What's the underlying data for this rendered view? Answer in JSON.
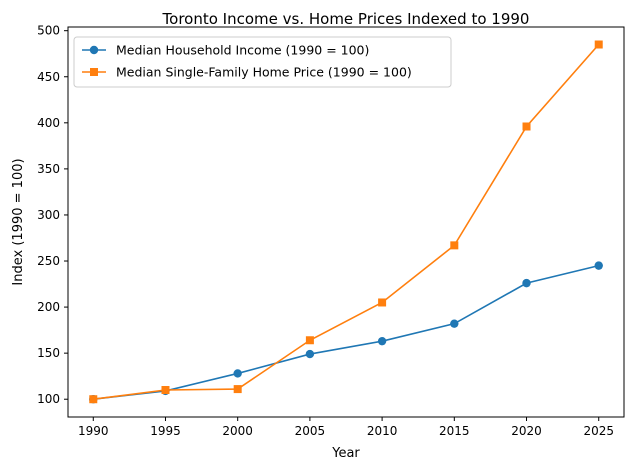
{
  "chart_data": {
    "type": "line",
    "title": "Toronto Income vs. Home Prices Indexed to 1990",
    "xlabel": "Year",
    "ylabel": "Index (1990 = 100)",
    "x": [
      1990,
      1995,
      2000,
      2005,
      2010,
      2015,
      2020,
      2025
    ],
    "xlim": [
      1988.25,
      2026.75
    ],
    "ylim": [
      80.7,
      504
    ],
    "xticks": [
      1990,
      1995,
      2000,
      2005,
      2010,
      2015,
      2020,
      2025
    ],
    "yticks": [
      100,
      150,
      200,
      250,
      300,
      350,
      400,
      450,
      500
    ],
    "grid": false,
    "legend_position": "upper-left",
    "series": [
      {
        "name": "Median Household Income (1990 = 100)",
        "color": "#1f77b4",
        "marker": "circle",
        "values": [
          100,
          109,
          128,
          149,
          163,
          182,
          226,
          245
        ]
      },
      {
        "name": "Median Single-Family Home Price (1990 = 100)",
        "color": "#ff7f0e",
        "marker": "square",
        "values": [
          100,
          110,
          111,
          164,
          205,
          267,
          396,
          485
        ]
      }
    ]
  }
}
